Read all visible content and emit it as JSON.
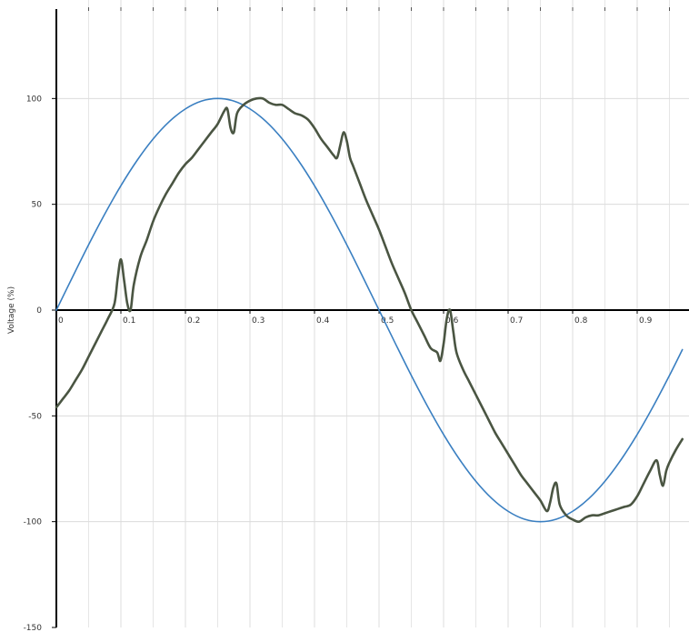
{
  "chart_data": {
    "type": "line",
    "title": "",
    "xlabel": "",
    "ylabel": "Voltage (%)",
    "xlim": [
      0,
      0.97
    ],
    "ylim": [
      -150,
      150
    ],
    "grid": true,
    "x_ticks": [
      0,
      0.1,
      0.2,
      0.3,
      0.4,
      0.5,
      0.6,
      0.7,
      0.8,
      0.9
    ],
    "x_tick_labels": [
      "0",
      "0.1",
      "0.2",
      "0.3",
      "0.4",
      "0.5",
      "0.6",
      "0.7",
      "0.8",
      "0.9"
    ],
    "y_ticks": [
      -150,
      -100,
      -50,
      0,
      50,
      100
    ],
    "y_tick_labels": [
      "-150",
      "-100",
      "-50",
      "0",
      "50",
      "100"
    ],
    "series": [
      {
        "color": "#3a7fc1",
        "x": [
          0,
          0.025,
          0.05,
          0.075,
          0.1,
          0.125,
          0.15,
          0.175,
          0.2,
          0.225,
          0.25,
          0.275,
          0.3,
          0.325,
          0.35,
          0.375,
          0.4,
          0.425,
          0.45,
          0.475,
          0.5,
          0.525,
          0.55,
          0.575,
          0.6,
          0.625,
          0.65,
          0.675,
          0.7,
          0.725,
          0.75,
          0.775,
          0.8,
          0.825,
          0.85,
          0.875,
          0.9,
          0.925,
          0.95,
          0.97
        ],
        "values": [
          0,
          15.6,
          30.9,
          45.4,
          58.8,
          70.7,
          80.9,
          89.1,
          95.1,
          98.8,
          100,
          98.8,
          95.1,
          89.1,
          80.9,
          70.7,
          58.8,
          45.4,
          30.9,
          15.6,
          0,
          -15.6,
          -30.9,
          -45.4,
          -58.8,
          -70.7,
          -80.9,
          -89.1,
          -95.1,
          -98.8,
          -100,
          -98.8,
          -95.1,
          -89.1,
          -80.9,
          -70.7,
          -58.8,
          -45.4,
          -30.9,
          -18.7
        ]
      },
      {
        "color": "#4a5542",
        "x": [
          0,
          0.01,
          0.02,
          0.03,
          0.04,
          0.05,
          0.06,
          0.07,
          0.08,
          0.09,
          0.095,
          0.1,
          0.105,
          0.11,
          0.115,
          0.12,
          0.13,
          0.14,
          0.15,
          0.16,
          0.17,
          0.18,
          0.19,
          0.2,
          0.21,
          0.22,
          0.23,
          0.24,
          0.25,
          0.26,
          0.265,
          0.27,
          0.275,
          0.28,
          0.29,
          0.3,
          0.31,
          0.32,
          0.33,
          0.34,
          0.35,
          0.36,
          0.37,
          0.38,
          0.39,
          0.4,
          0.41,
          0.42,
          0.43,
          0.435,
          0.44,
          0.445,
          0.45,
          0.455,
          0.46,
          0.47,
          0.48,
          0.49,
          0.5,
          0.51,
          0.52,
          0.53,
          0.54,
          0.55,
          0.56,
          0.57,
          0.58,
          0.59,
          0.595,
          0.6,
          0.605,
          0.61,
          0.615,
          0.62,
          0.63,
          0.64,
          0.65,
          0.66,
          0.67,
          0.68,
          0.69,
          0.7,
          0.71,
          0.72,
          0.73,
          0.74,
          0.75,
          0.76,
          0.765,
          0.77,
          0.775,
          0.78,
          0.79,
          0.8,
          0.81,
          0.82,
          0.83,
          0.84,
          0.85,
          0.86,
          0.87,
          0.88,
          0.89,
          0.9,
          0.91,
          0.92,
          0.93,
          0.935,
          0.94,
          0.945,
          0.95,
          0.96,
          0.97
        ],
        "values": [
          -46,
          -42,
          -38,
          -33,
          -28,
          -22,
          -16,
          -10,
          -4,
          3,
          15,
          24,
          14,
          3,
          0,
          12,
          25,
          33,
          42,
          49,
          55,
          60,
          65,
          69,
          72,
          76,
          80,
          84,
          88,
          94,
          95,
          86,
          84,
          93,
          97,
          99,
          100,
          100,
          98,
          97,
          97,
          95,
          93,
          92,
          90,
          86,
          81,
          77,
          73,
          72,
          78,
          84,
          80,
          72,
          68,
          60,
          52,
          45,
          38,
          30,
          22,
          15,
          8,
          0,
          -6,
          -12,
          -18,
          -20,
          -24,
          -16,
          -4,
          0,
          -10,
          -20,
          -28,
          -34,
          -40,
          -46,
          -52,
          -58,
          -63,
          -68,
          -73,
          -78,
          -82,
          -86,
          -90,
          -95,
          -91,
          -84,
          -82,
          -92,
          -97,
          -99,
          -100,
          -98,
          -97,
          -97,
          -96,
          -95,
          -94,
          -93,
          -92,
          -88,
          -82,
          -76,
          -71,
          -78,
          -83,
          -76,
          -72,
          -66,
          -61
        ]
      }
    ]
  }
}
